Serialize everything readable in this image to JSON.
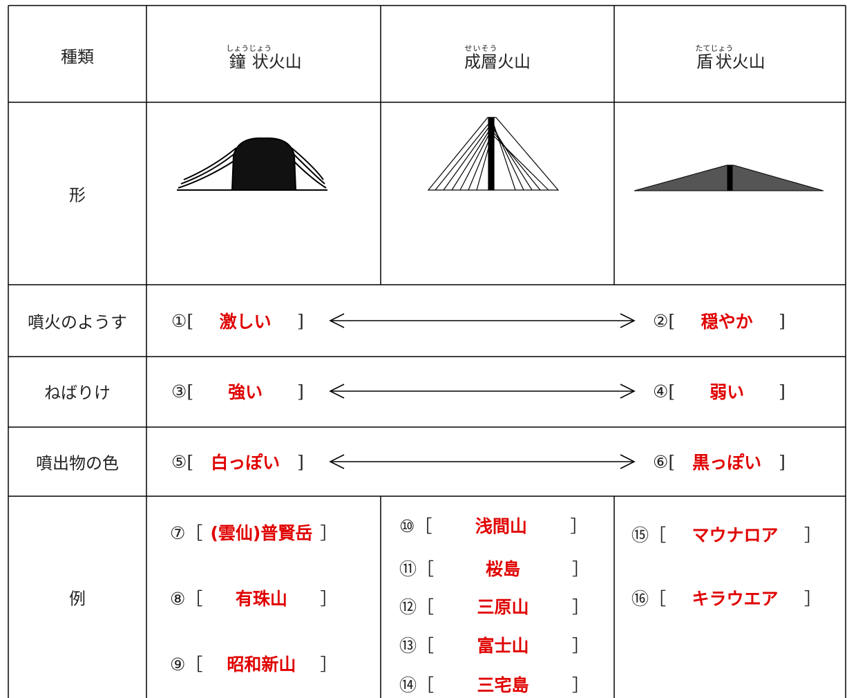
{
  "header": {
    "type_label": "種類",
    "volcanoes": [
      {
        "base": "鐘状",
        "ruby": "しょうじょう",
        "rest": "火山"
      },
      {
        "base": "成層",
        "ruby": "せいそう",
        "rest": "火山"
      },
      {
        "base": "盾状",
        "ruby": "たてじょう",
        "rest": "火山"
      }
    ]
  },
  "rows": {
    "shape": "形",
    "eruption": "噴火のようす",
    "viscosity": "ねばりけ",
    "color": "噴出物の色",
    "examples": "例"
  },
  "comparisons": [
    {
      "left": {
        "prefix": "①[",
        "answer": "激しい",
        "suffix": "]"
      },
      "right": {
        "prefix": "②[",
        "answer": "穏やか",
        "suffix": "]"
      }
    },
    {
      "left": {
        "prefix": "③[",
        "answer": "強い",
        "suffix": "]"
      },
      "right": {
        "prefix": "④[",
        "answer": "弱い",
        "suffix": "]"
      }
    },
    {
      "left": {
        "prefix": "⑤[",
        "answer": "白っぽい",
        "suffix": "]"
      },
      "right": {
        "prefix": "⑥[",
        "answer": "黒っぽい",
        "suffix": "]"
      }
    }
  ],
  "examples": [
    [
      {
        "prefix": "⑦［",
        "answer": "(雲仙)普賢岳",
        "suffix": "］"
      },
      {
        "prefix": "⑧［",
        "answer": "有珠山",
        "suffix": "］"
      },
      {
        "prefix": "⑨［",
        "answer": "昭和新山",
        "suffix": "］"
      }
    ],
    [
      {
        "prefix": "⑩［",
        "answer": "浅間山",
        "suffix": "］"
      },
      {
        "prefix": "⑪［",
        "answer": "桜島",
        "suffix": "］"
      },
      {
        "prefix": "⑫［",
        "answer": "三原山",
        "suffix": "］"
      },
      {
        "prefix": "⑬［",
        "answer": "富士山",
        "suffix": "］"
      },
      {
        "prefix": "⑭［",
        "answer": "三宅島",
        "suffix": "］"
      }
    ],
    [
      {
        "prefix": "⑮［",
        "answer": "マウナロア",
        "suffix": "］"
      },
      {
        "prefix": "⑯［",
        "answer": "キラウエア",
        "suffix": "］"
      }
    ]
  ]
}
